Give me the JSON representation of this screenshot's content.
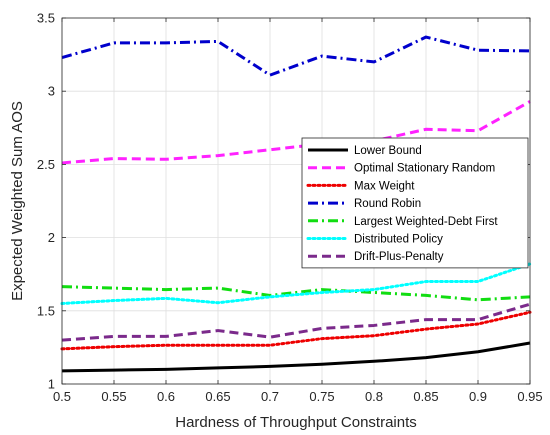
{
  "chart_data": {
    "type": "line",
    "xlabel": "Hardness of Throughput Constraints",
    "ylabel": "Expected Weighted Sum AOS",
    "xlim": [
      0.5,
      0.95
    ],
    "ylim": [
      1,
      3.5
    ],
    "xticks": [
      "0.5",
      "0.55",
      "0.6",
      "0.65",
      "0.7",
      "0.75",
      "0.8",
      "0.85",
      "0.9",
      "0.95"
    ],
    "yticks": [
      "1",
      "1.5",
      "2",
      "2.5",
      "3",
      "3.5"
    ],
    "grid": true,
    "legend_position": "center-right",
    "x": [
      0.5,
      0.55,
      0.6,
      0.65,
      0.7,
      0.75,
      0.8,
      0.85,
      0.9,
      0.95
    ],
    "series": [
      {
        "name": "Lower Bound",
        "color": "#000000",
        "style": "solid",
        "values": [
          1.09,
          1.095,
          1.1,
          1.11,
          1.12,
          1.135,
          1.155,
          1.18,
          1.22,
          1.28
        ]
      },
      {
        "name": "Optimal Stationary Random",
        "color": "#ff22ff",
        "style": "dashed",
        "values": [
          2.51,
          2.54,
          2.535,
          2.56,
          2.6,
          2.64,
          2.66,
          2.74,
          2.73,
          2.93
        ]
      },
      {
        "name": "Max Weight",
        "color": "#ee0000",
        "style": "dotted",
        "values": [
          1.24,
          1.255,
          1.265,
          1.265,
          1.265,
          1.31,
          1.33,
          1.375,
          1.41,
          1.49
        ]
      },
      {
        "name": "Round Robin",
        "color": "#0000cc",
        "style": "dashdot",
        "values": [
          3.23,
          3.33,
          3.33,
          3.34,
          3.11,
          3.24,
          3.2,
          3.37,
          3.28,
          3.275
        ]
      },
      {
        "name": "Largest Weighted-Debt First",
        "color": "#11dd11",
        "style": "dashdot",
        "values": [
          1.665,
          1.655,
          1.645,
          1.655,
          1.605,
          1.645,
          1.625,
          1.605,
          1.575,
          1.595
        ]
      },
      {
        "name": "Distributed Policy",
        "color": "#00ffff",
        "style": "dotted",
        "values": [
          1.55,
          1.57,
          1.585,
          1.555,
          1.595,
          1.625,
          1.645,
          1.7,
          1.7,
          1.82
        ]
      },
      {
        "name": "Drift-Plus-Penalty",
        "color": "#7b2a8b",
        "style": "dashed",
        "values": [
          1.3,
          1.325,
          1.325,
          1.365,
          1.32,
          1.38,
          1.4,
          1.44,
          1.44,
          1.545
        ]
      }
    ]
  }
}
